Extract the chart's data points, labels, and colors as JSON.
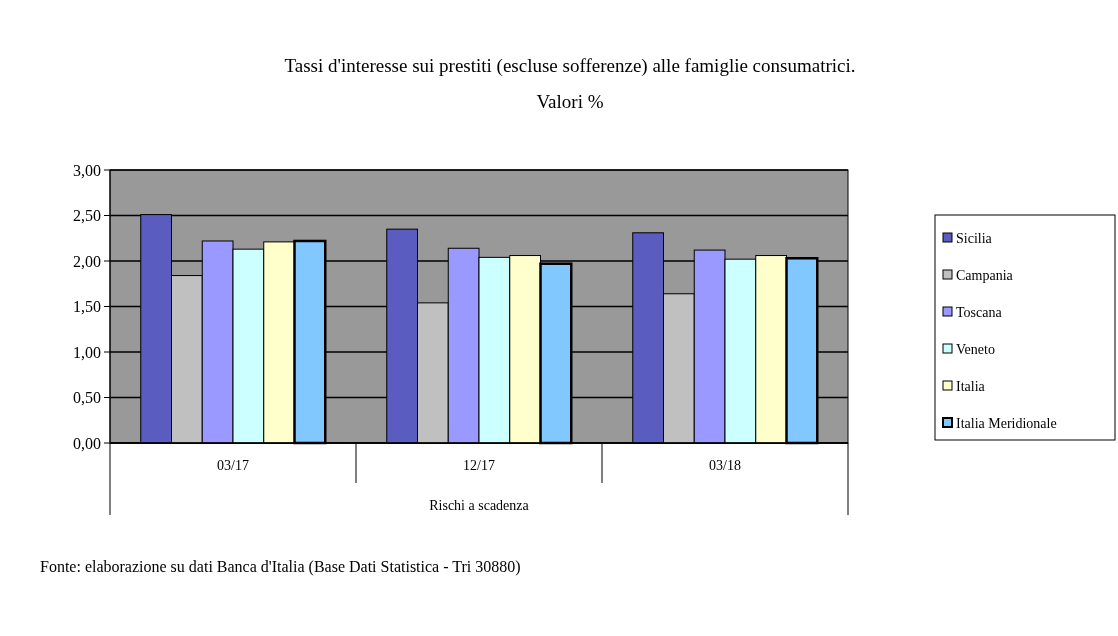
{
  "chart_data": {
    "type": "bar",
    "title": "Tassi  d'interesse sui prestiti (escluse sofferenze) alle famiglie consumatrici.",
    "subtitle": "Valori %",
    "xlabel": "Rischi a scadenza",
    "annotations": [
      "Fonte: elaborazione su dati Banca d'Italia (Base Dati Statistica - Tri 30880)"
    ],
    "categories": [
      "03/17",
      "12/17",
      "03/18"
    ],
    "series": [
      {
        "name": "Sicilia",
        "color": "#5a5cc0",
        "values": [
          2.51,
          2.35,
          2.31
        ]
      },
      {
        "name": "Campania",
        "color": "#c0c0c0",
        "values": [
          1.84,
          1.54,
          1.64
        ]
      },
      {
        "name": "Toscana",
        "color": "#9999ff",
        "values": [
          2.22,
          2.14,
          2.12
        ]
      },
      {
        "name": "Veneto",
        "color": "#ccffff",
        "values": [
          2.13,
          2.04,
          2.02
        ]
      },
      {
        "name": "Italia",
        "color": "#ffffcc",
        "values": [
          2.21,
          2.06,
          2.06
        ]
      },
      {
        "name": "Italia Meridionale",
        "color": "#80c8ff",
        "values": [
          2.22,
          1.97,
          2.03
        ]
      }
    ],
    "ylim": [
      0,
      3
    ],
    "yticks": [
      {
        "value": 0,
        "label": "0,00"
      },
      {
        "value": 0.5,
        "label": "0,50"
      },
      {
        "value": 1,
        "label": "1,00"
      },
      {
        "value": 1.5,
        "label": "1,50"
      },
      {
        "value": 2,
        "label": "2,00"
      },
      {
        "value": 2.5,
        "label": "2,50"
      },
      {
        "value": 3,
        "label": "3,00"
      }
    ],
    "grid": "y",
    "legend": "right"
  }
}
